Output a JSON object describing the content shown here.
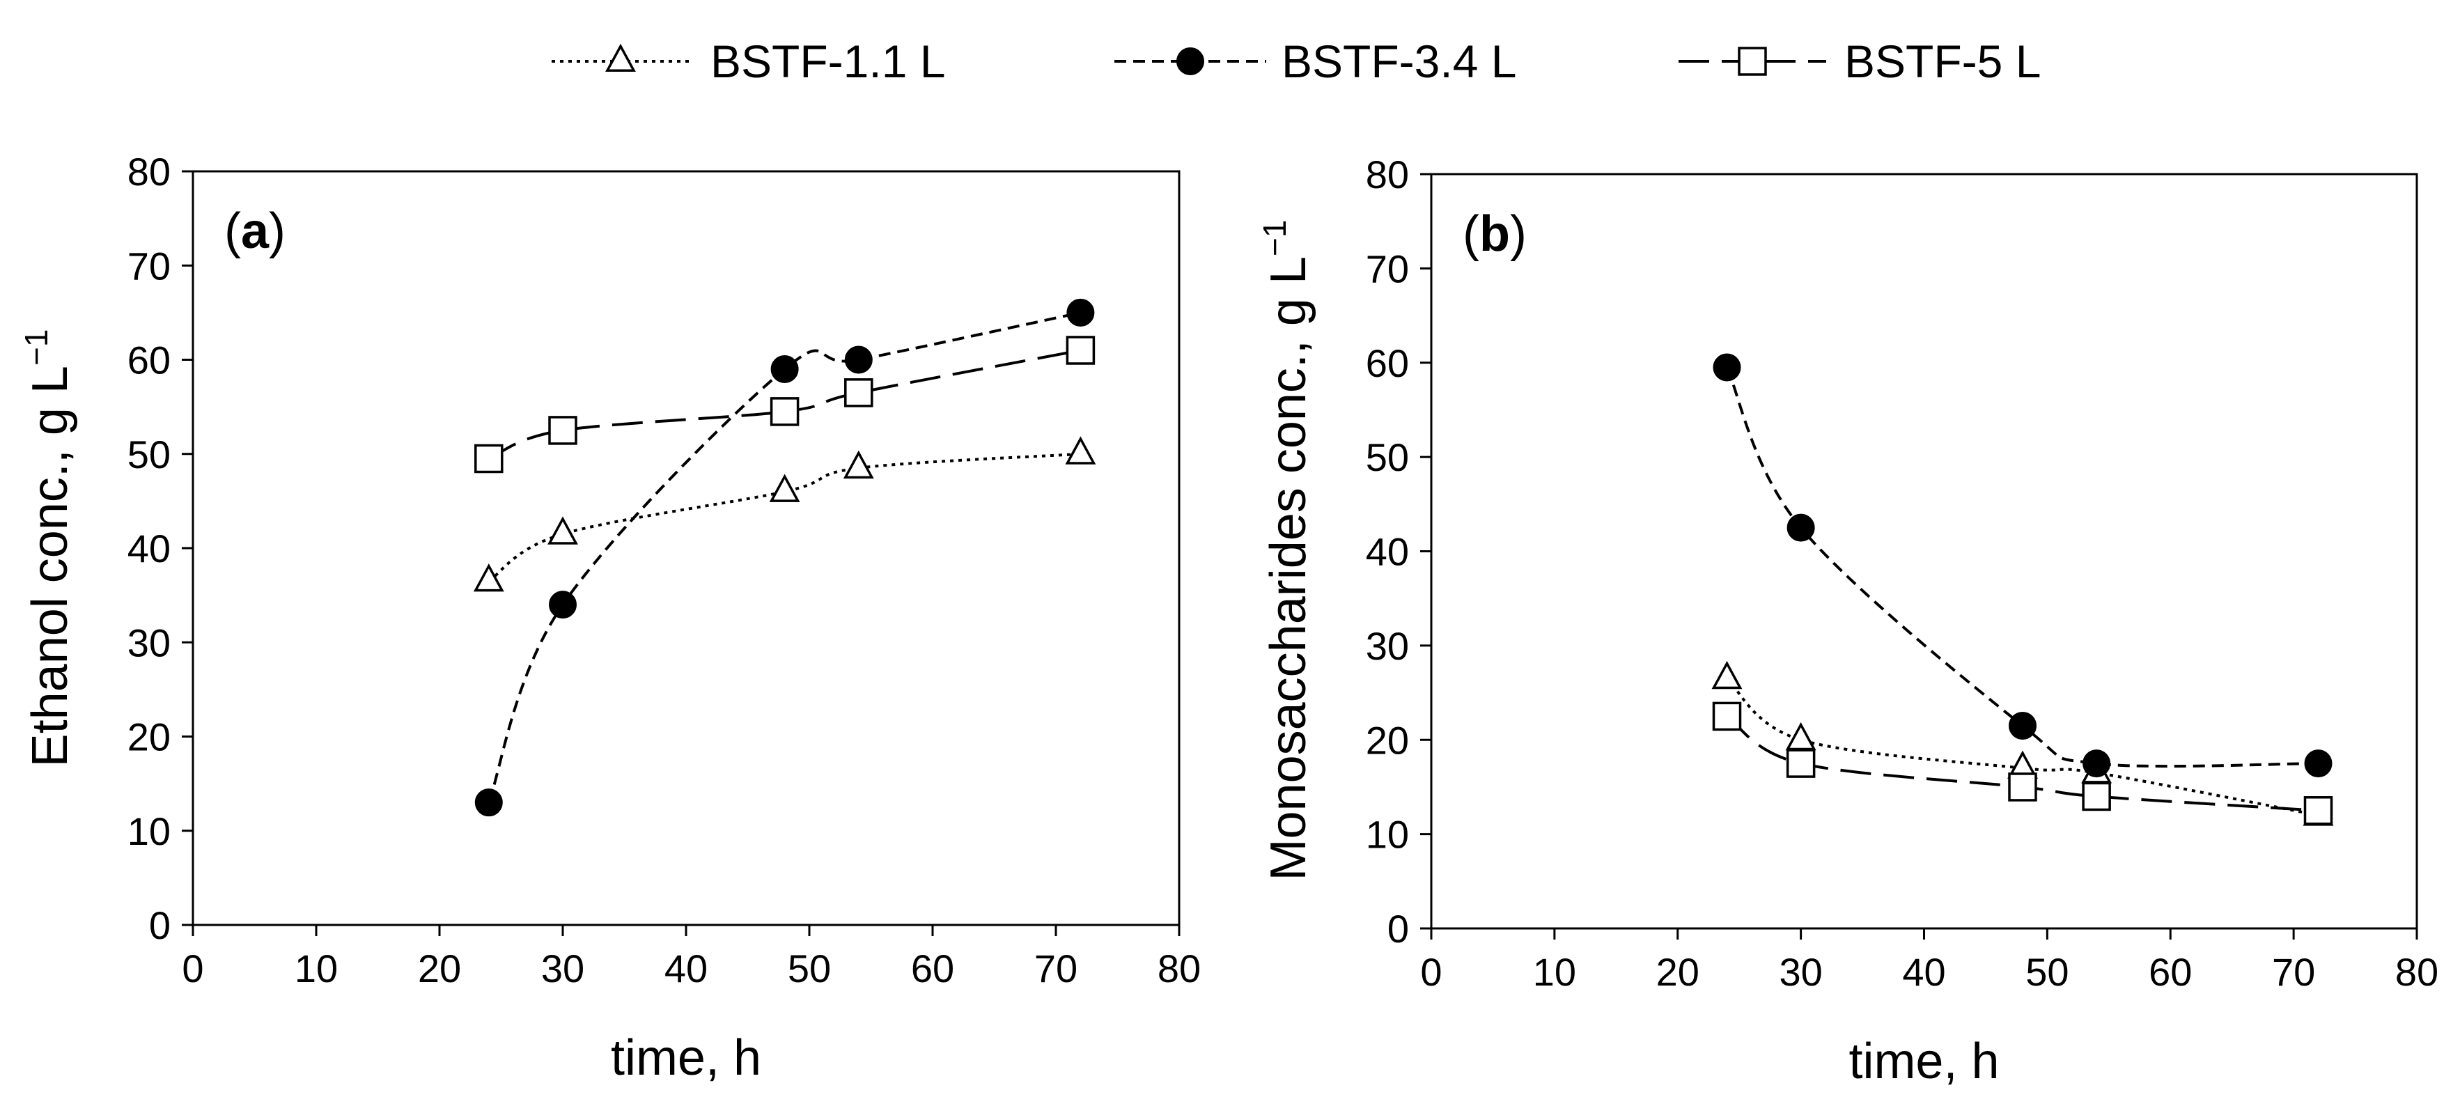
{
  "legend": [
    {
      "label": "BSTF-1.1 L",
      "marker": "triangle-open",
      "dash": "dotted"
    },
    {
      "label": "BSTF-3.4 L",
      "marker": "circle-filled",
      "dash": "short-dash"
    },
    {
      "label": "BSTF-5 L",
      "marker": "square-open",
      "dash": "long-dash"
    }
  ],
  "chart_data": [
    {
      "type": "line",
      "panel_label": {
        "open": "(",
        "letter": "a",
        "close": ")"
      },
      "title": "",
      "xlabel": "time, h",
      "ylabel": "Ethanol conc., g L",
      "ylabel_sup": "−1",
      "xlim": [
        0,
        80
      ],
      "ylim": [
        0,
        80
      ],
      "xticks": [
        0,
        10,
        20,
        30,
        40,
        50,
        60,
        70,
        80
      ],
      "yticks": [
        0,
        10,
        20,
        30,
        40,
        50,
        60,
        70,
        80
      ],
      "grid": false,
      "series": [
        {
          "name": "BSTF-1.1 L",
          "x": [
            24,
            30,
            48,
            54,
            72
          ],
          "y": [
            36.5,
            41.5,
            46,
            48.5,
            50
          ]
        },
        {
          "name": "BSTF-3.4 L",
          "x": [
            24,
            30,
            48,
            54,
            72
          ],
          "y": [
            13,
            34,
            59,
            60,
            65
          ]
        },
        {
          "name": "BSTF-5 L",
          "x": [
            24,
            30,
            48,
            54,
            72
          ],
          "y": [
            49.5,
            52.5,
            54.5,
            56.5,
            61
          ]
        }
      ]
    },
    {
      "type": "line",
      "panel_label": {
        "open": "(",
        "letter": "b",
        "close": ")"
      },
      "title": "",
      "xlabel": "time, h",
      "ylabel": "Monosaccharides conc., g L",
      "ylabel_sup": "−1",
      "xlim": [
        0,
        80
      ],
      "ylim": [
        0,
        80
      ],
      "xticks": [
        0,
        10,
        20,
        30,
        40,
        50,
        60,
        70,
        80
      ],
      "yticks": [
        0,
        10,
        20,
        30,
        40,
        50,
        60,
        70,
        80
      ],
      "grid": false,
      "series": [
        {
          "name": "BSTF-1.1 L",
          "x": [
            24,
            30,
            48,
            54,
            72
          ],
          "y": [
            26.5,
            20,
            17,
            16.5,
            12
          ]
        },
        {
          "name": "BSTF-3.4 L",
          "x": [
            24,
            30,
            48,
            54,
            72
          ],
          "y": [
            59.5,
            42.5,
            21.5,
            17.5,
            17.5
          ]
        },
        {
          "name": "BSTF-5 L",
          "x": [
            24,
            30,
            48,
            54,
            72
          ],
          "y": [
            22.5,
            17.5,
            15,
            14,
            12.5
          ]
        }
      ]
    }
  ]
}
